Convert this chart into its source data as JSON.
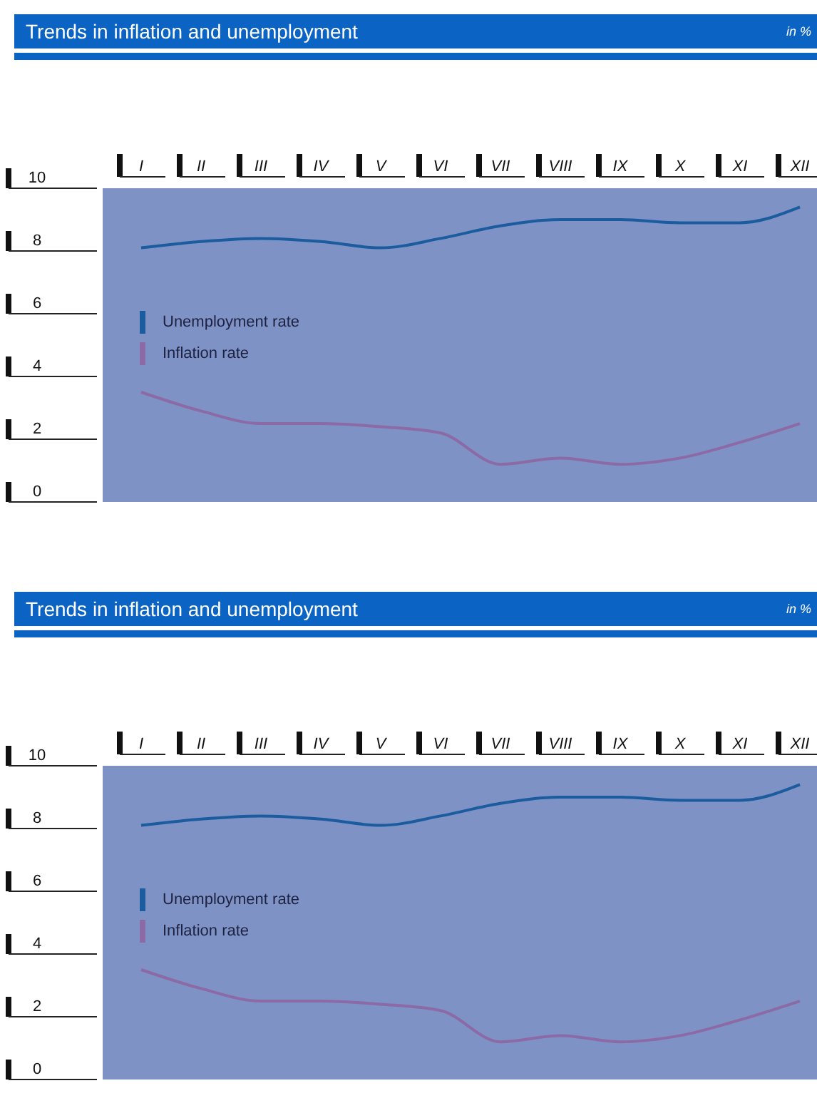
{
  "chart_data": [
    {
      "type": "line",
      "title": "Trends in inflation and unemployment",
      "subtitle": "in %",
      "categories": [
        "I",
        "II",
        "III",
        "IV",
        "V",
        "VI",
        "VII",
        "VIII",
        "IX",
        "X",
        "XI",
        "XII"
      ],
      "series": [
        {
          "name": "Unemployment rate",
          "color": "#1a5c9e",
          "values": [
            8.1,
            8.3,
            8.4,
            8.3,
            8.1,
            8.4,
            8.8,
            9.0,
            9.0,
            8.9,
            8.9,
            9.4
          ]
        },
        {
          "name": "Inflation rate",
          "color": "#8c6aa6",
          "values": [
            3.5,
            2.9,
            2.5,
            2.5,
            2.4,
            2.2,
            1.2,
            1.4,
            1.2,
            1.4,
            1.9,
            2.5
          ]
        }
      ],
      "ylim": [
        0,
        10
      ],
      "yticks": [
        0,
        2,
        4,
        6,
        8,
        10
      ],
      "legend": "left",
      "marker": "none",
      "line_style": "solid"
    },
    {
      "type": "line",
      "title": "Trends in inflation and unemployment",
      "subtitle": "in %",
      "categories": [
        "I",
        "II",
        "III",
        "IV",
        "V",
        "VI",
        "VII",
        "VIII",
        "IX",
        "X",
        "XI",
        "XII"
      ],
      "series": [
        {
          "name": "Unemployment rate",
          "color": "#1a5c9e",
          "values": [
            8.1,
            8.3,
            8.4,
            8.3,
            8.1,
            8.4,
            8.8,
            9.0,
            9.0,
            8.9,
            8.9,
            9.4
          ]
        },
        {
          "name": "Inflation rate",
          "color": "#8c6aa6",
          "values": [
            3.5,
            2.9,
            2.5,
            2.5,
            2.4,
            2.2,
            1.2,
            1.4,
            1.2,
            1.4,
            1.9,
            2.5
          ]
        }
      ],
      "ylim": [
        0,
        10
      ],
      "yticks": [
        0,
        2,
        4,
        6,
        8,
        10
      ],
      "legend": "left",
      "marker": "none",
      "line_style": "solid"
    }
  ]
}
